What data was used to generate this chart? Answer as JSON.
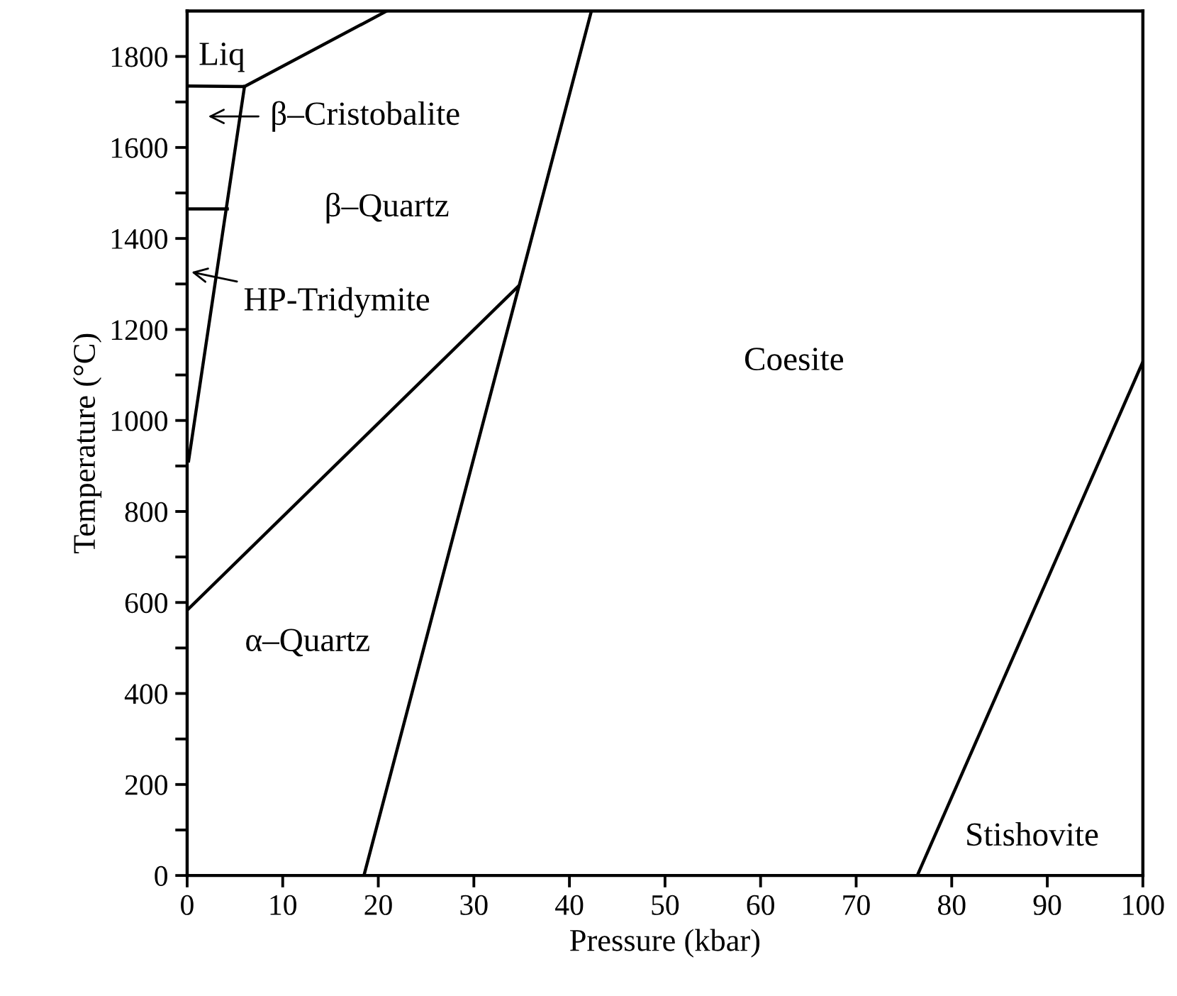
{
  "chart_data": {
    "type": "line",
    "xlabel": "Pressure (kbar)",
    "ylabel": "Temperature (°C)",
    "xlim": [
      0,
      100
    ],
    "ylim": [
      0,
      1900
    ],
    "xticks": [
      0,
      10,
      20,
      30,
      40,
      50,
      60,
      70,
      80,
      90,
      100
    ],
    "yticks": [
      0,
      {
        "value": 100,
        "label": null
      },
      200,
      {
        "value": 300,
        "label": null
      },
      400,
      {
        "value": 500,
        "label": null
      },
      600,
      {
        "value": 700,
        "label": null
      },
      800,
      {
        "value": 900,
        "label": null
      },
      1000,
      {
        "value": 1100,
        "label": null
      },
      1200,
      {
        "value": 1300,
        "label": null
      },
      1400,
      {
        "value": 1500,
        "label": null
      },
      1600,
      {
        "value": 1700,
        "label": null
      },
      1800
    ],
    "grid": false,
    "legend": false,
    "marker": "none",
    "line_style": "solid",
    "series": [
      {
        "color": "#000000",
        "x": [
          0,
          6.0,
          20.9
        ],
        "values": [
          1735,
          1734,
          1900
        ]
      },
      {
        "color": "#000000",
        "x": [
          0.15,
          6.0
        ],
        "values": [
          911,
          1734
        ]
      },
      {
        "color": "#000000",
        "x": [
          0,
          4.2
        ],
        "values": [
          1465,
          1465
        ]
      },
      {
        "color": "#000000",
        "x": [
          0,
          34.6
        ],
        "values": [
          583,
          1294
        ]
      },
      {
        "color": "#000000",
        "x": [
          18.5,
          42.3
        ],
        "values": [
          0,
          1900
        ]
      },
      {
        "color": "#000000",
        "x": [
          76.4,
          100
        ],
        "values": [
          0,
          1129
        ]
      }
    ],
    "annotations": [
      "Liq",
      "β–Cristobalite",
      "β–Quartz",
      "HP-Tridymite",
      "Coesite",
      "α–Quartz",
      "Stishovite"
    ]
  }
}
